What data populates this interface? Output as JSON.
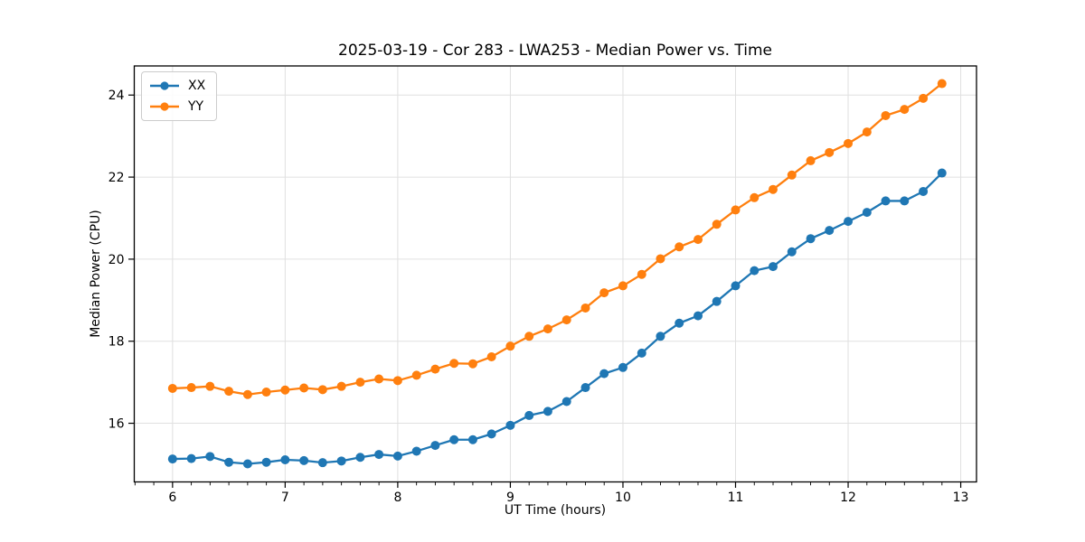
{
  "chart_data": {
    "type": "line",
    "title": "2025-03-19 - Cor 283 - LWA253 - Median Power vs. Time",
    "xlabel": "UT Time (hours)",
    "ylabel": "Median Power (CPU)",
    "grid": true,
    "legend_position": "upper left",
    "xlim": [
      5.66,
      13.14
    ],
    "ylim": [
      14.57,
      24.71
    ],
    "xticks": [
      6,
      7,
      8,
      9,
      10,
      11,
      12,
      13
    ],
    "yticks": [
      16,
      18,
      20,
      22,
      24
    ],
    "x_minor_ticks_per_hour": 6,
    "x": [
      6.0,
      6.167,
      6.333,
      6.5,
      6.667,
      6.833,
      7.0,
      7.167,
      7.333,
      7.5,
      7.667,
      7.833,
      8.0,
      8.167,
      8.333,
      8.5,
      8.667,
      8.833,
      9.0,
      9.167,
      9.333,
      9.5,
      9.667,
      9.833,
      10.0,
      10.167,
      10.333,
      10.5,
      10.667,
      10.833,
      11.0,
      11.167,
      11.333,
      11.5,
      11.667,
      11.833,
      12.0,
      12.167,
      12.333,
      12.5,
      12.667,
      12.833
    ],
    "series": [
      {
        "name": "XX",
        "color": "#1f77b4",
        "values": [
          15.13,
          15.14,
          15.19,
          15.05,
          15.01,
          15.05,
          15.11,
          15.09,
          15.04,
          15.08,
          15.17,
          15.24,
          15.2,
          15.32,
          15.46,
          15.6,
          15.6,
          15.74,
          15.95,
          16.19,
          16.29,
          16.53,
          16.87,
          17.21,
          17.36,
          17.71,
          18.12,
          18.44,
          18.62,
          18.97,
          19.35,
          19.72,
          19.82,
          20.18,
          20.5,
          20.7,
          20.92,
          21.14,
          21.42,
          21.42,
          21.65,
          22.1
        ]
      },
      {
        "name": "YY",
        "color": "#ff7f0e",
        "values": [
          16.85,
          16.87,
          16.9,
          16.78,
          16.7,
          16.76,
          16.81,
          16.86,
          16.82,
          16.9,
          17.0,
          17.08,
          17.04,
          17.17,
          17.32,
          17.46,
          17.45,
          17.62,
          17.88,
          18.12,
          18.3,
          18.52,
          18.81,
          19.18,
          19.35,
          19.63,
          20.01,
          20.3,
          20.48,
          20.85,
          21.2,
          21.5,
          21.7,
          22.05,
          22.4,
          22.6,
          22.82,
          23.1,
          23.5,
          23.65,
          23.92,
          24.28
        ]
      }
    ],
    "colors": {
      "grid": "#e0e0e0",
      "spine": "#000000",
      "background": "#ffffff"
    }
  }
}
